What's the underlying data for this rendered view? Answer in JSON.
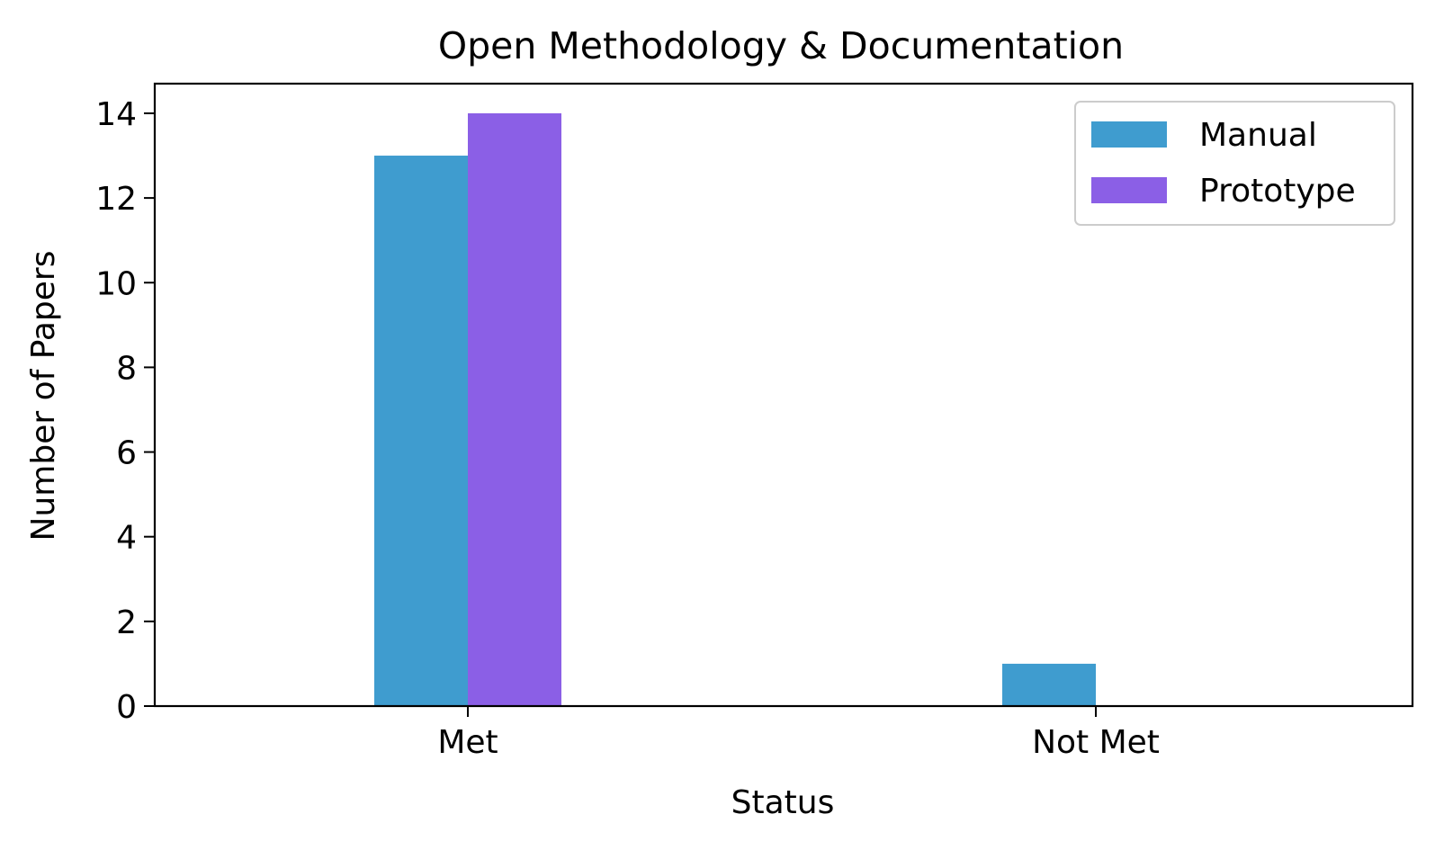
{
  "chart_data": {
    "type": "bar",
    "title": "Open Methodology & Documentation",
    "xlabel": "Status",
    "ylabel": "Number of Papers",
    "categories": [
      "Met",
      "Not Met"
    ],
    "series": [
      {
        "name": "Manual",
        "values": [
          13,
          1
        ]
      },
      {
        "name": "Prototype",
        "values": [
          14,
          0
        ]
      }
    ],
    "ylim": [
      0,
      14.7
    ],
    "yticks": [
      0,
      2,
      4,
      6,
      8,
      10,
      12,
      14
    ],
    "grid": false,
    "legend_position": "top-right"
  },
  "colors": {
    "Manual": "#3f9ccf",
    "Prototype": "#8b5fe6"
  }
}
